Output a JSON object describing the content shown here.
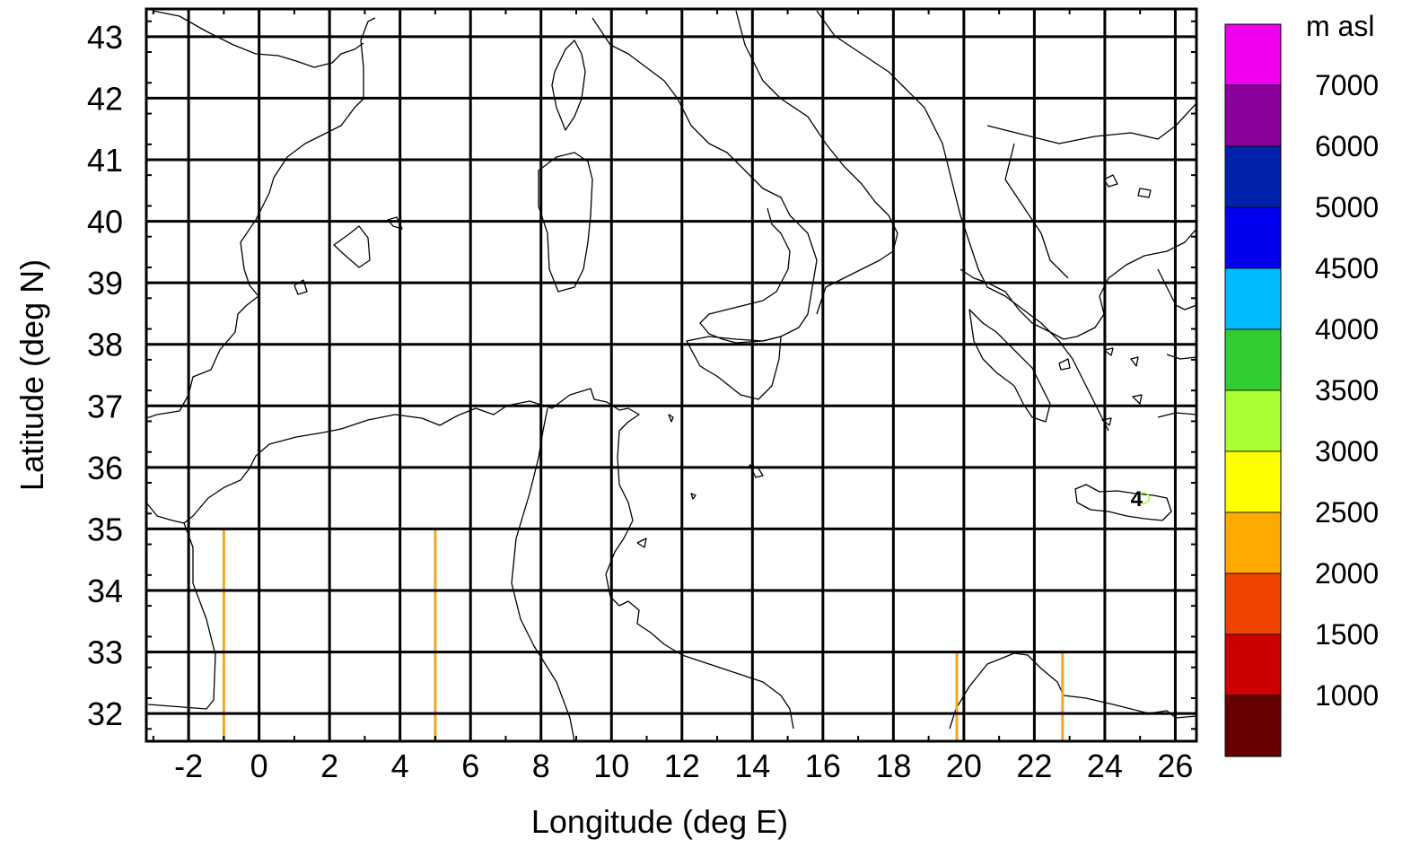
{
  "chart_data": {
    "type": "map",
    "xlabel": "Longitude (deg E)",
    "ylabel": "Latitude (deg N)",
    "xlim": [
      -3.2,
      26.6
    ],
    "ylim": [
      31.55,
      43.45
    ],
    "x_ticks": [
      -2,
      0,
      2,
      4,
      6,
      8,
      10,
      12,
      14,
      16,
      18,
      20,
      22,
      24,
      26
    ],
    "y_ticks": [
      32,
      33,
      34,
      35,
      36,
      37,
      38,
      39,
      40,
      41,
      42,
      43
    ],
    "grid": true,
    "regions": [
      {
        "lon": [
          -1,
          5
        ],
        "lat": [
          31.55,
          35
        ],
        "color": "#f5a623"
      },
      {
        "lon": [
          19.8,
          22.8
        ],
        "lat": [
          31.55,
          33
        ],
        "color": "#f5a623"
      }
    ],
    "elevation_marker": {
      "lon": 24.9,
      "lat": 35.5,
      "label": "4"
    },
    "colorbar": {
      "unit_label": "m asl",
      "labels": [
        "7000",
        "6000",
        "5000",
        "4500",
        "4000",
        "3500",
        "3000",
        "2500",
        "2000",
        "1500",
        "1000"
      ],
      "colors_top_to_bottom": [
        "#ee00ee",
        "#880099",
        "#0022aa",
        "#0000ee",
        "#00bbff",
        "#33cc33",
        "#aaff33",
        "#ffff00",
        "#ffaa00",
        "#ee4400",
        "#cc0000",
        "#660000"
      ]
    }
  }
}
